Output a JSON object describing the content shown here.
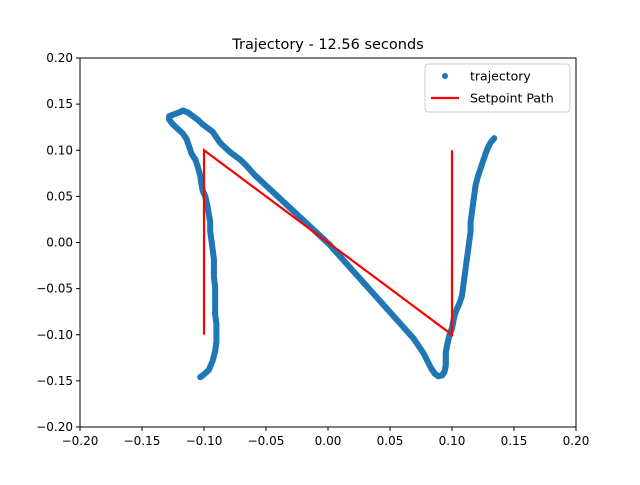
{
  "chart_data": {
    "type": "scatter",
    "title": "Trajectory - 12.56 seconds",
    "xlabel": "",
    "ylabel": "",
    "xlim": [
      -0.2,
      0.2
    ],
    "ylim": [
      -0.2,
      0.2
    ],
    "xticks": [
      "−0.20",
      "−0.15",
      "−0.10",
      "−0.05",
      "0.00",
      "0.05",
      "0.10",
      "0.15",
      "0.20"
    ],
    "yticks": [
      "−0.20",
      "−0.15",
      "−0.10",
      "−0.05",
      "0.00",
      "0.05",
      "0.10",
      "0.15",
      "0.20"
    ],
    "grid": false,
    "legend_position": "top-right",
    "colors": {
      "trajectory": "#1f77b4",
      "setpoint": "#ff0000"
    },
    "series": [
      {
        "name": "trajectory",
        "kind": "points",
        "points": [
          [
            -0.103,
            -0.146
          ],
          [
            -0.1,
            -0.143
          ],
          [
            -0.096,
            -0.138
          ],
          [
            -0.093,
            -0.128
          ],
          [
            -0.091,
            -0.118
          ],
          [
            -0.09,
            -0.108
          ],
          [
            -0.09,
            -0.098
          ],
          [
            -0.09,
            -0.088
          ],
          [
            -0.091,
            -0.078
          ],
          [
            -0.091,
            -0.068
          ],
          [
            -0.091,
            -0.058
          ],
          [
            -0.091,
            -0.048
          ],
          [
            -0.092,
            -0.038
          ],
          [
            -0.092,
            -0.028
          ],
          [
            -0.092,
            -0.018
          ],
          [
            -0.093,
            -0.008
          ],
          [
            -0.094,
            0.002
          ],
          [
            -0.095,
            0.012
          ],
          [
            -0.095,
            0.022
          ],
          [
            -0.096,
            0.03
          ],
          [
            -0.097,
            0.038
          ],
          [
            -0.098,
            0.044
          ],
          [
            -0.099,
            0.05
          ],
          [
            -0.101,
            0.056
          ],
          [
            -0.102,
            0.063
          ],
          [
            -0.103,
            0.072
          ],
          [
            -0.105,
            0.082
          ],
          [
            -0.107,
            0.09
          ],
          [
            -0.11,
            0.096
          ],
          [
            -0.112,
            0.104
          ],
          [
            -0.114,
            0.112
          ],
          [
            -0.117,
            0.118
          ],
          [
            -0.121,
            0.123
          ],
          [
            -0.125,
            0.128
          ],
          [
            -0.128,
            0.133
          ],
          [
            -0.128,
            0.137
          ],
          [
            -0.124,
            0.139
          ],
          [
            -0.12,
            0.141
          ],
          [
            -0.117,
            0.143
          ],
          [
            -0.113,
            0.141
          ],
          [
            -0.109,
            0.137
          ],
          [
            -0.105,
            0.133
          ],
          [
            -0.101,
            0.128
          ],
          [
            -0.097,
            0.124
          ],
          [
            -0.093,
            0.12
          ],
          [
            -0.09,
            0.114
          ],
          [
            -0.087,
            0.108
          ],
          [
            -0.083,
            0.103
          ],
          [
            -0.079,
            0.098
          ],
          [
            -0.075,
            0.094
          ],
          [
            -0.071,
            0.09
          ],
          [
            -0.067,
            0.085
          ],
          [
            -0.063,
            0.079
          ],
          [
            -0.059,
            0.073
          ],
          [
            -0.055,
            0.068
          ],
          [
            -0.051,
            0.063
          ],
          [
            -0.047,
            0.058
          ],
          [
            -0.043,
            0.053
          ],
          [
            -0.039,
            0.048
          ],
          [
            -0.035,
            0.043
          ],
          [
            -0.031,
            0.038
          ],
          [
            -0.027,
            0.033
          ],
          [
            -0.023,
            0.028
          ],
          [
            -0.019,
            0.023
          ],
          [
            -0.015,
            0.018
          ],
          [
            -0.011,
            0.013
          ],
          [
            -0.007,
            0.008
          ],
          [
            -0.003,
            0.003
          ],
          [
            0.001,
            -0.002
          ],
          [
            0.005,
            -0.008
          ],
          [
            0.009,
            -0.014
          ],
          [
            0.013,
            -0.02
          ],
          [
            0.017,
            -0.026
          ],
          [
            0.021,
            -0.032
          ],
          [
            0.025,
            -0.038
          ],
          [
            0.029,
            -0.044
          ],
          [
            0.033,
            -0.05
          ],
          [
            0.037,
            -0.056
          ],
          [
            0.041,
            -0.062
          ],
          [
            0.045,
            -0.068
          ],
          [
            0.049,
            -0.074
          ],
          [
            0.053,
            -0.08
          ],
          [
            0.057,
            -0.086
          ],
          [
            0.061,
            -0.092
          ],
          [
            0.065,
            -0.098
          ],
          [
            0.069,
            -0.104
          ],
          [
            0.073,
            -0.112
          ],
          [
            0.077,
            -0.12
          ],
          [
            0.08,
            -0.128
          ],
          [
            0.083,
            -0.136
          ],
          [
            0.086,
            -0.142
          ],
          [
            0.089,
            -0.145
          ],
          [
            0.092,
            -0.144
          ],
          [
            0.094,
            -0.14
          ],
          [
            0.095,
            -0.133
          ],
          [
            0.095,
            -0.126
          ],
          [
            0.095,
            -0.119
          ],
          [
            0.096,
            -0.112
          ],
          [
            0.097,
            -0.106
          ],
          [
            0.098,
            -0.1
          ],
          [
            0.1,
            -0.093
          ],
          [
            0.101,
            -0.086
          ],
          [
            0.102,
            -0.079
          ],
          [
            0.104,
            -0.072
          ],
          [
            0.106,
            -0.066
          ],
          [
            0.108,
            -0.058
          ],
          [
            0.109,
            -0.048
          ],
          [
            0.11,
            -0.038
          ],
          [
            0.111,
            -0.028
          ],
          [
            0.112,
            -0.018
          ],
          [
            0.113,
            -0.008
          ],
          [
            0.114,
            0.002
          ],
          [
            0.115,
            0.012
          ],
          [
            0.115,
            0.022
          ],
          [
            0.116,
            0.032
          ],
          [
            0.117,
            0.042
          ],
          [
            0.118,
            0.052
          ],
          [
            0.119,
            0.062
          ],
          [
            0.121,
            0.072
          ],
          [
            0.123,
            0.08
          ],
          [
            0.125,
            0.088
          ],
          [
            0.127,
            0.096
          ],
          [
            0.129,
            0.103
          ],
          [
            0.131,
            0.108
          ],
          [
            0.134,
            0.113
          ]
        ]
      },
      {
        "name": "Setpoint Path",
        "kind": "line",
        "points": [
          [
            -0.1,
            -0.1
          ],
          [
            -0.1,
            0.1
          ],
          [
            0.1,
            -0.1
          ],
          [
            0.1,
            0.1
          ]
        ]
      }
    ]
  }
}
